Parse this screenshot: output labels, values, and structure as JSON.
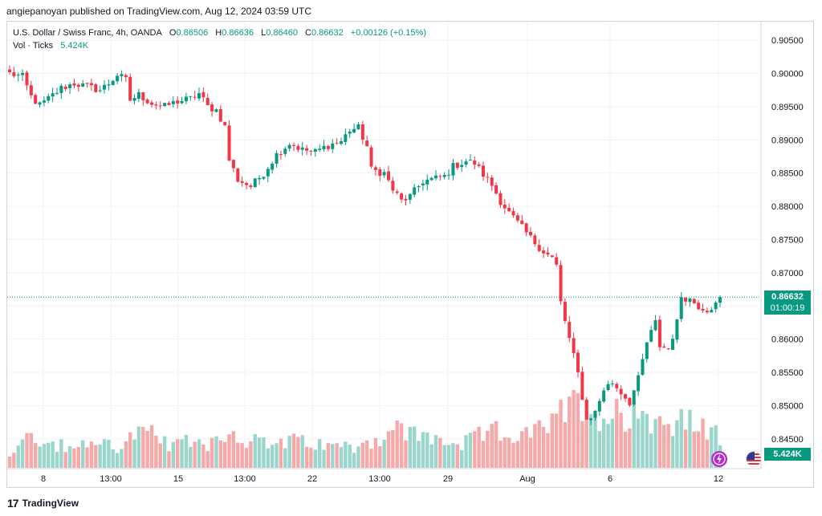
{
  "header": {
    "publisher_line": "angiepanoyan published on TradingView.com, Aug 12, 2024 03:59 UTC"
  },
  "legend": {
    "symbol": "U.S. Dollar / Swiss Franc, 4h, OANDA",
    "open_label": "O",
    "open": "0.86506",
    "high_label": "H",
    "high": "0.86636",
    "low_label": "L",
    "low": "0.86460",
    "close_label": "C",
    "close": "0.86632",
    "change": "+0.00126 (+0.15%)",
    "volume_label": "Vol · Ticks",
    "volume": "5.424K"
  },
  "price_badge": {
    "price": "0.86632",
    "countdown": "01:00:19"
  },
  "volume_badge": "5.424K",
  "footer": {
    "brand": "TradingView",
    "logo_glyph": "17"
  },
  "colors": {
    "up": "#089981",
    "down": "#f23645",
    "vol_up": "#9ad6cc",
    "vol_down": "#f7a9a9",
    "grid": "#f0f3fa"
  },
  "icons": {
    "flash": "lightning-icon",
    "flag": "us-flag-icon"
  },
  "chart_data": {
    "type": "candlestick",
    "ylim": [
      0.8405,
      0.9078
    ],
    "yticks": [
      "0.90500",
      "0.90000",
      "0.89500",
      "0.89000",
      "0.88500",
      "0.88000",
      "0.87500",
      "0.87000",
      "0.86500",
      "0.86000",
      "0.85500",
      "0.85000",
      "0.84500"
    ],
    "xticks": [
      "8",
      "13:00",
      "15",
      "13:00",
      "22",
      "13:00",
      "29",
      "Aug",
      "6",
      "12"
    ],
    "last_price": 0.86632,
    "anchors": [
      [
        0,
        0.9
      ],
      [
        3,
        0.8995
      ],
      [
        5,
        0.8965
      ],
      [
        7,
        0.8952
      ],
      [
        9,
        0.8962
      ],
      [
        12,
        0.8978
      ],
      [
        15,
        0.8985
      ],
      [
        18,
        0.898
      ],
      [
        21,
        0.8975
      ],
      [
        23,
        0.8985
      ],
      [
        25,
        0.8998
      ],
      [
        27,
        0.899
      ],
      [
        28,
        0.896
      ],
      [
        30,
        0.8968
      ],
      [
        33,
        0.8955
      ],
      [
        36,
        0.895
      ],
      [
        39,
        0.8958
      ],
      [
        42,
        0.8962
      ],
      [
        44,
        0.897
      ],
      [
        46,
        0.895
      ],
      [
        48,
        0.8945
      ],
      [
        50,
        0.892
      ],
      [
        51,
        0.887
      ],
      [
        53,
        0.884
      ],
      [
        56,
        0.883
      ],
      [
        59,
        0.885
      ],
      [
        62,
        0.8878
      ],
      [
        65,
        0.8895
      ],
      [
        68,
        0.8885
      ],
      [
        71,
        0.8882
      ],
      [
        74,
        0.8892
      ],
      [
        77,
        0.8898
      ],
      [
        79,
        0.8915
      ],
      [
        81,
        0.8918
      ],
      [
        83,
        0.889
      ],
      [
        84,
        0.8855
      ],
      [
        87,
        0.885
      ],
      [
        89,
        0.8825
      ],
      [
        91,
        0.8808
      ],
      [
        93,
        0.8815
      ],
      [
        96,
        0.8838
      ],
      [
        99,
        0.8842
      ],
      [
        101,
        0.8845
      ],
      [
        103,
        0.886
      ],
      [
        106,
        0.8868
      ],
      [
        108,
        0.8865
      ],
      [
        110,
        0.8848
      ],
      [
        112,
        0.8832
      ],
      [
        114,
        0.8808
      ],
      [
        116,
        0.879
      ],
      [
        118,
        0.8775
      ],
      [
        121,
        0.8752
      ],
      [
        124,
        0.8732
      ],
      [
        126,
        0.8722
      ],
      [
        127,
        0.871
      ],
      [
        128,
        0.8655
      ],
      [
        130,
        0.86
      ],
      [
        132,
        0.8548
      ],
      [
        134,
        0.8478
      ],
      [
        136,
        0.849
      ],
      [
        138,
        0.8525
      ],
      [
        140,
        0.8535
      ],
      [
        142,
        0.852
      ],
      [
        144,
        0.8505
      ],
      [
        146,
        0.854
      ],
      [
        148,
        0.8595
      ],
      [
        150,
        0.8625
      ],
      [
        151,
        0.859
      ],
      [
        153,
        0.8585
      ],
      [
        155,
        0.8625
      ],
      [
        156,
        0.8665
      ],
      [
        158,
        0.866
      ],
      [
        160,
        0.865
      ],
      [
        162,
        0.8645
      ],
      [
        164,
        0.8652
      ],
      [
        165,
        0.8663
      ]
    ],
    "volume_levels": [
      [
        0,
        0.2
      ],
      [
        4,
        0.58
      ],
      [
        6,
        0.3
      ],
      [
        10,
        0.35
      ],
      [
        15,
        0.25
      ],
      [
        20,
        0.4
      ],
      [
        25,
        0.3
      ],
      [
        30,
        0.5
      ],
      [
        34,
        0.45
      ],
      [
        38,
        0.28
      ],
      [
        42,
        0.4
      ],
      [
        46,
        0.35
      ],
      [
        50,
        0.5
      ],
      [
        55,
        0.42
      ],
      [
        60,
        0.32
      ],
      [
        65,
        0.38
      ],
      [
        70,
        0.34
      ],
      [
        75,
        0.3
      ],
      [
        80,
        0.32
      ],
      [
        85,
        0.4
      ],
      [
        90,
        0.55
      ],
      [
        95,
        0.45
      ],
      [
        100,
        0.4
      ],
      [
        105,
        0.32
      ],
      [
        110,
        0.48
      ],
      [
        115,
        0.52
      ],
      [
        120,
        0.45
      ],
      [
        125,
        0.6
      ],
      [
        130,
        0.85
      ],
      [
        133,
        1.0
      ],
      [
        135,
        0.9
      ],
      [
        138,
        0.7
      ],
      [
        140,
        0.8
      ],
      [
        143,
        0.75
      ],
      [
        146,
        0.9
      ],
      [
        149,
        0.7
      ],
      [
        152,
        0.6
      ],
      [
        156,
        0.75
      ],
      [
        160,
        0.55
      ],
      [
        163,
        0.52
      ],
      [
        165,
        0.4
      ]
    ],
    "volume_max_ticks": 9000
  }
}
